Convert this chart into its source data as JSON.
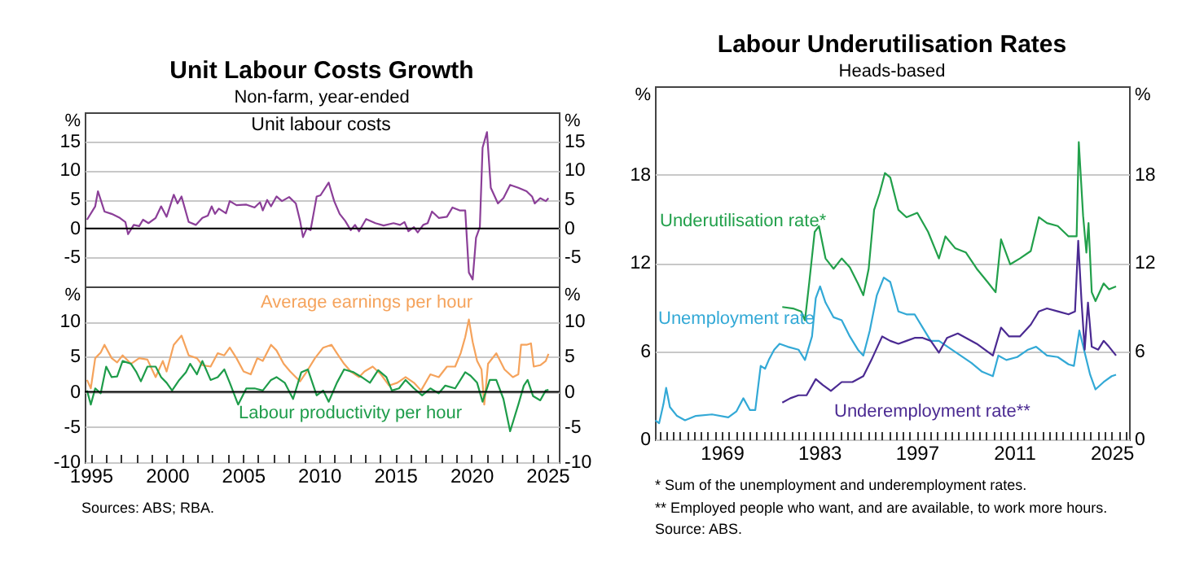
{
  "chart_data": [
    {
      "type": "line",
      "title": "Unit Labour Costs Growth",
      "subtitle": "Non-farm, year-ended",
      "ylabel": "%",
      "y2label": "%",
      "annotations": [
        "Unit labour costs"
      ],
      "xlim": [
        1994.6,
        2025.75
      ],
      "ylim": [
        -10,
        20
      ],
      "yticks": [
        -5,
        0,
        5,
        10,
        15
      ],
      "y2lim": [
        -10,
        20
      ],
      "y2ticks": [
        -5,
        0,
        5,
        10,
        15
      ],
      "grid": "y",
      "tick_labels": "y",
      "ref_lines": [
        {
          "axis": "y",
          "value": 0,
          "color": "#000000"
        }
      ],
      "series": [
        {
          "color": "#8b3f98",
          "x": [
            1994.75,
            1995.29,
            1995.47,
            1995.9,
            1996.37,
            1996.91,
            1997.27,
            1997.45,
            1997.82,
            1998.18,
            1998.43,
            1998.79,
            1999.26,
            1999.62,
            1999.98,
            2000.45,
            2000.7,
            2000.96,
            2001.43,
            2001.9,
            2002.33,
            2002.69,
            2002.94,
            2003.16,
            2003.41,
            2003.88,
            2004.13,
            2004.57,
            2005.22,
            2005.76,
            2006.12,
            2006.3,
            2006.59,
            2006.84,
            2007.2,
            2007.56,
            2008.03,
            2008.47,
            2008.75,
            2008.94,
            2009.19,
            2009.44,
            2009.84,
            2010.09,
            2010.63,
            2010.99,
            2011.35,
            2011.71,
            2012.08,
            2012.36,
            2012.62,
            2013.09,
            2013.7,
            2014.24,
            2014.89,
            2015.32,
            2015.61,
            2015.87,
            2016.23,
            2016.48,
            2016.84,
            2017.13,
            2017.42,
            2017.86,
            2018.4,
            2018.76,
            2019.23,
            2019.6,
            2019.84,
            2020.09,
            2020.31,
            2020.56,
            2020.74,
            2021.03,
            2021.28,
            2021.75,
            2022.11,
            2022.55,
            2023.09,
            2023.63,
            2023.99,
            2024.17,
            2024.53,
            2024.89,
            2025.07
          ],
          "values": [
            1.5,
            3.8,
            6.4,
            2.9,
            2.5,
            1.8,
            1.1,
            -1.0,
            0.6,
            0.4,
            1.5,
            0.9,
            1.8,
            3.8,
            2.0,
            5.8,
            4.3,
            5.5,
            1.1,
            0.6,
            1.8,
            2.2,
            3.8,
            2.5,
            3.4,
            2.6,
            4.7,
            4.0,
            4.1,
            3.6,
            4.5,
            3.1,
            4.9,
            3.8,
            5.5,
            4.7,
            5.4,
            4.3,
            1.3,
            -1.5,
            0,
            -0.3,
            5.5,
            5.7,
            7.9,
            4.7,
            2.5,
            1.3,
            -0.3,
            0.6,
            -0.5,
            1.6,
            0.9,
            0.5,
            0.9,
            0.6,
            1.1,
            -0.5,
            0.2,
            -0.7,
            0.6,
            0.9,
            2.9,
            1.8,
            2.0,
            3.6,
            3.1,
            3.1,
            -7.6,
            -8.8,
            -1.6,
            0.2,
            13.9,
            16.6,
            7.0,
            4.3,
            5.2,
            7.5,
            7.0,
            6.4,
            5.5,
            4.3,
            5.2,
            4.7,
            5.2
          ]
        }
      ]
    },
    {
      "type": "line",
      "ylabel": "%",
      "y2label": "%",
      "annotations": [
        "Sources: ABS; RBA."
      ],
      "xlim": [
        1994.6,
        2025.75
      ],
      "xticks": [
        1995,
        {
          "value": 1996,
          "label": null
        },
        {
          "value": 1997,
          "label": null
        },
        {
          "value": 1998,
          "label": null
        },
        {
          "value": 1999,
          "label": null
        },
        2000,
        {
          "value": 2001,
          "label": null
        },
        {
          "value": 2002,
          "label": null
        },
        {
          "value": 2003,
          "label": null
        },
        {
          "value": 2004,
          "label": null
        },
        2005,
        {
          "value": 2006,
          "label": null
        },
        {
          "value": 2007,
          "label": null
        },
        {
          "value": 2008,
          "label": null
        },
        {
          "value": 2009,
          "label": null
        },
        2010,
        {
          "value": 2011,
          "label": null
        },
        {
          "value": 2012,
          "label": null
        },
        {
          "value": 2013,
          "label": null
        },
        {
          "value": 2014,
          "label": null
        },
        2015,
        {
          "value": 2016,
          "label": null
        },
        {
          "value": 2017,
          "label": null
        },
        {
          "value": 2018,
          "label": null
        },
        {
          "value": 2019,
          "label": null
        },
        2020,
        {
          "value": 2021,
          "label": null
        },
        {
          "value": 2022,
          "label": null
        },
        {
          "value": 2023,
          "label": null
        },
        {
          "value": 2024,
          "label": null
        },
        2025
      ],
      "ylim": [
        -10,
        15
      ],
      "yticks": [
        -10,
        -5,
        0,
        5,
        10
      ],
      "y2lim": [
        -10,
        15
      ],
      "y2ticks": [
        -10,
        -5,
        0,
        5,
        10
      ],
      "grid": "y",
      "ref_lines": [
        {
          "axis": "y",
          "value": 0,
          "color": "#000000"
        }
      ],
      "series": [
        {
          "name": "Average earnings per hour",
          "color": "#f5a35c",
          "x": [
            1994.75,
            1995.0,
            1995.29,
            1995.65,
            1995.9,
            1996.37,
            1996.73,
            1997.09,
            1997.64,
            1998.18,
            1998.72,
            1999.26,
            1999.73,
            1999.98,
            2000.45,
            2000.96,
            2001.43,
            2001.97,
            2002.33,
            2002.87,
            2003.34,
            2003.77,
            2004.13,
            2004.57,
            2005.04,
            2005.51,
            2005.94,
            2006.3,
            2006.84,
            2007.2,
            2007.67,
            2008.1,
            2008.47,
            2008.75,
            2009.19,
            2009.73,
            2010.27,
            2010.81,
            2011.17,
            2011.64,
            2012.08,
            2012.62,
            2012.98,
            2013.52,
            2014.06,
            2014.6,
            2015.14,
            2015.68,
            2016.23,
            2016.7,
            2017.31,
            2017.86,
            2018.4,
            2018.94,
            2019.3,
            2019.6,
            2019.84,
            2020.09,
            2020.38,
            2020.67,
            2020.85,
            2021.1,
            2021.64,
            2022.18,
            2022.73,
            2023.09,
            2023.27,
            2023.63,
            2023.92,
            2024.1,
            2024.53,
            2024.89,
            2025.07
          ],
          "values": [
            1.7,
            0.5,
            4.8,
            5.6,
            6.7,
            4.8,
            4.2,
            5.2,
            4.0,
            4.8,
            4.6,
            2.1,
            4.4,
            2.9,
            6.7,
            8.0,
            5.2,
            4.8,
            3.8,
            3.6,
            5.5,
            5.2,
            6.3,
            4.8,
            2.9,
            2.5,
            4.8,
            4.4,
            6.7,
            5.9,
            4.0,
            2.9,
            2.1,
            1.5,
            2.9,
            4.8,
            6.3,
            6.7,
            5.5,
            4.0,
            2.9,
            2.1,
            2.9,
            3.6,
            2.5,
            0.9,
            1.3,
            2.1,
            1.3,
            0.2,
            2.5,
            2.1,
            3.6,
            3.6,
            5.5,
            7.8,
            10.3,
            7.1,
            4.4,
            3.2,
            -1.8,
            4.0,
            5.5,
            3.2,
            2.1,
            2.5,
            6.7,
            6.7,
            6.9,
            3.6,
            3.8,
            4.4,
            5.4
          ]
        },
        {
          "name": "Labour productivity per hour",
          "color": "#1e9c4a",
          "x": [
            1994.75,
            1995.0,
            1995.29,
            1995.65,
            1996.01,
            1996.37,
            1996.73,
            1997.09,
            1997.64,
            1998.0,
            1998.29,
            1998.72,
            1999.26,
            1999.62,
            1999.98,
            2000.34,
            2000.81,
            2001.25,
            2001.53,
            2001.97,
            2002.33,
            2002.87,
            2003.34,
            2003.77,
            2004.13,
            2004.68,
            2005.22,
            2005.76,
            2006.3,
            2006.84,
            2007.2,
            2007.74,
            2008.29,
            2008.83,
            2009.26,
            2009.84,
            2010.27,
            2010.63,
            2011.17,
            2011.64,
            2012.26,
            2012.8,
            2013.34,
            2013.88,
            2014.42,
            2014.78,
            2015.25,
            2015.68,
            2016.23,
            2016.77,
            2017.31,
            2017.86,
            2018.29,
            2018.94,
            2019.6,
            2019.95,
            2020.38,
            2020.74,
            2021.21,
            2021.64,
            2022.11,
            2022.55,
            2023.09,
            2023.45,
            2023.7,
            2024.06,
            2024.53,
            2024.89,
            2025.07
          ],
          "values": [
            0.2,
            -1.8,
            0.5,
            -0.2,
            3.6,
            2.1,
            2.2,
            4.4,
            4.0,
            2.8,
            1.5,
            3.6,
            3.6,
            2.1,
            1.3,
            0.2,
            1.7,
            2.8,
            4.0,
            2.5,
            4.4,
            1.7,
            2.1,
            3.2,
            1.3,
            -1.8,
            0.5,
            0.5,
            0.2,
            1.7,
            2.1,
            1.3,
            -1.0,
            2.8,
            3.2,
            -0.5,
            0.2,
            -1.4,
            1.3,
            3.2,
            2.8,
            2.1,
            1.3,
            3.1,
            2.1,
            0.2,
            0.5,
            1.7,
            0.5,
            -0.5,
            0.5,
            -0.2,
            0.9,
            0.5,
            2.8,
            2.3,
            1.3,
            -1.4,
            1.7,
            1.7,
            -1.0,
            -5.6,
            -1.8,
            0.9,
            1.7,
            -0.6,
            -1.2,
            0.2,
            0.3
          ]
        }
      ]
    },
    {
      "type": "line",
      "title": "Labour Underutilisation Rates",
      "subtitle": "Heads-based",
      "ylabel": "%",
      "y2label": "%",
      "annotations": [
        "* Sum of the unemployment and underemployment rates.",
        "** Employed people who want, and are available, to work more hours.",
        "Source: ABS."
      ],
      "xlim": [
        1959.4,
        2027.5
      ],
      "xticks": [
        {
          "value": 1960,
          "label": null
        },
        {
          "value": 1961,
          "label": null
        },
        {
          "value": 1962,
          "label": null
        },
        {
          "value": 1963,
          "label": null
        },
        {
          "value": 1964,
          "label": null
        },
        {
          "value": 1965,
          "label": null
        },
        {
          "value": 1966,
          "label": null
        },
        {
          "value": 1967,
          "label": null
        },
        {
          "value": 1968,
          "label": null
        },
        1969,
        {
          "value": 1970,
          "label": null
        },
        {
          "value": 1971,
          "label": null
        },
        {
          "value": 1972,
          "label": null
        },
        {
          "value": 1973,
          "label": null
        },
        {
          "value": 1974,
          "label": null
        },
        {
          "value": 1975,
          "label": null
        },
        {
          "value": 1976,
          "label": null
        },
        {
          "value": 1977,
          "label": null
        },
        {
          "value": 1978,
          "label": null
        },
        {
          "value": 1979,
          "label": null
        },
        {
          "value": 1980,
          "label": null
        },
        {
          "value": 1981,
          "label": null
        },
        {
          "value": 1982,
          "label": null
        },
        1983,
        {
          "value": 1984,
          "label": null
        },
        {
          "value": 1985,
          "label": null
        },
        {
          "value": 1986,
          "label": null
        },
        {
          "value": 1987,
          "label": null
        },
        {
          "value": 1988,
          "label": null
        },
        {
          "value": 1989,
          "label": null
        },
        {
          "value": 1990,
          "label": null
        },
        {
          "value": 1991,
          "label": null
        },
        {
          "value": 1992,
          "label": null
        },
        {
          "value": 1993,
          "label": null
        },
        {
          "value": 1994,
          "label": null
        },
        {
          "value": 1995,
          "label": null
        },
        {
          "value": 1996,
          "label": null
        },
        1997,
        {
          "value": 1998,
          "label": null
        },
        {
          "value": 1999,
          "label": null
        },
        {
          "value": 2000,
          "label": null
        },
        {
          "value": 2001,
          "label": null
        },
        {
          "value": 2002,
          "label": null
        },
        {
          "value": 2003,
          "label": null
        },
        {
          "value": 2004,
          "label": null
        },
        {
          "value": 2005,
          "label": null
        },
        {
          "value": 2006,
          "label": null
        },
        {
          "value": 2007,
          "label": null
        },
        {
          "value": 2008,
          "label": null
        },
        {
          "value": 2009,
          "label": null
        },
        {
          "value": 2010,
          "label": null
        },
        2011,
        {
          "value": 2012,
          "label": null
        },
        {
          "value": 2013,
          "label": null
        },
        {
          "value": 2014,
          "label": null
        },
        {
          "value": 2015,
          "label": null
        },
        {
          "value": 2016,
          "label": null
        },
        {
          "value": 2017,
          "label": null
        },
        {
          "value": 2018,
          "label": null
        },
        {
          "value": 2019,
          "label": null
        },
        {
          "value": 2020,
          "label": null
        },
        {
          "value": 2021,
          "label": null
        },
        {
          "value": 2022,
          "label": null
        },
        {
          "value": 2023,
          "label": null
        },
        {
          "value": 2024,
          "label": null
        },
        2025,
        {
          "value": 2026,
          "label": null
        },
        {
          "value": 2027,
          "label": null
        }
      ],
      "ylim": [
        0,
        24
      ],
      "yticks": [
        0,
        6,
        12,
        18
      ],
      "y2lim": [
        0,
        24
      ],
      "y2ticks": [
        0,
        6,
        12,
        18
      ],
      "grid": "y",
      "series": [
        {
          "name": "Underutilisation rate*",
          "color": "#22a04b",
          "x": [
            1977.69,
            1979.24,
            1980.4,
            1980.95,
            1981.57,
            1982.34,
            1982.96,
            1983.9,
            1985.06,
            1986.22,
            1987.39,
            1988.55,
            1989.33,
            1990.1,
            1990.88,
            1991.65,
            1992.43,
            1993.2,
            1994.37,
            1995.53,
            1997.08,
            1998.64,
            2000.19,
            2001.12,
            2002.51,
            2004.07,
            2005.62,
            2007.17,
            2008.33,
            2009.11,
            2010.43,
            2011.82,
            2013.38,
            2014.54,
            2015.71,
            2017.26,
            2018.81,
            2019.97,
            2020.28,
            2020.9,
            2021.37,
            2021.68,
            2022.14,
            2022.68,
            2023.85,
            2024.62,
            2025.63
          ],
          "values": [
            9.0,
            8.9,
            8.7,
            8.1,
            10.7,
            14.1,
            14.5,
            12.3,
            11.6,
            12.3,
            11.7,
            10.6,
            9.8,
            11.6,
            15.6,
            16.7,
            18.1,
            17.8,
            15.6,
            15.1,
            15.4,
            14.1,
            12.3,
            13.8,
            13.0,
            12.7,
            11.6,
            10.7,
            10.0,
            13.6,
            11.9,
            12.3,
            12.8,
            15.1,
            14.7,
            14.5,
            13.8,
            13.8,
            20.2,
            15.2,
            12.7,
            14.7,
            10.0,
            9.4,
            10.6,
            10.2,
            10.4
          ]
        },
        {
          "name": "Unemployment rate",
          "color": "#33a9d6",
          "x": [
            1959.46,
            1960.0,
            1960.62,
            1961.01,
            1961.55,
            1962.56,
            1963.72,
            1965.28,
            1967.6,
            1969.93,
            1971.09,
            1972.1,
            1973.03,
            1973.81,
            1974.59,
            1975.21,
            1975.75,
            1976.53,
            1977.3,
            1978.46,
            1980.02,
            1980.95,
            1981.96,
            1982.5,
            1983.12,
            1983.9,
            1985.06,
            1986.22,
            1987.39,
            1988.55,
            1989.33,
            1990.26,
            1991.27,
            1992.27,
            1993.2,
            1994.37,
            1995.53,
            1996.7,
            1997.86,
            1999.02,
            2000.19,
            2001.74,
            2003.29,
            2004.84,
            2006.39,
            2007.94,
            2008.72,
            2009.88,
            2011.44,
            2012.99,
            2014.15,
            2015.71,
            2017.26,
            2018.81,
            2019.58,
            2020.36,
            2021.13,
            2021.91,
            2022.68,
            2023.85,
            2025.01,
            2025.63
          ],
          "values": [
            1.3,
            1.1,
            2.4,
            3.5,
            2.2,
            1.6,
            1.3,
            1.6,
            1.7,
            1.5,
            1.9,
            2.8,
            2.0,
            2.0,
            5.0,
            4.8,
            5.4,
            6.1,
            6.5,
            6.3,
            6.1,
            5.4,
            7.0,
            9.6,
            10.4,
            9.3,
            8.3,
            8.1,
            7.0,
            6.1,
            5.7,
            7.4,
            9.8,
            11.0,
            10.7,
            8.7,
            8.5,
            8.5,
            7.6,
            6.7,
            6.7,
            6.2,
            5.7,
            5.2,
            4.6,
            4.3,
            5.7,
            5.4,
            5.6,
            6.1,
            6.3,
            5.7,
            5.6,
            5.1,
            5.0,
            7.4,
            5.9,
            4.4,
            3.4,
            3.9,
            4.3,
            4.4
          ]
        },
        {
          "name": "Underemployment rate**",
          "color": "#4b2a92",
          "x": [
            1977.69,
            1978.85,
            1980.02,
            1981.18,
            1982.5,
            1983.51,
            1984.67,
            1986.22,
            1987.77,
            1989.33,
            1990.49,
            1992.04,
            1993.2,
            1994.37,
            1995.53,
            1996.7,
            1997.86,
            1999.02,
            2000.19,
            2001.35,
            2002.9,
            2004.07,
            2005.62,
            2006.78,
            2007.94,
            2009.11,
            2010.27,
            2011.82,
            2013.38,
            2014.54,
            2015.71,
            2017.26,
            2018.81,
            2019.74,
            2020.2,
            2020.67,
            2021.13,
            2021.6,
            2022.14,
            2023.07,
            2023.85,
            2024.62,
            2025.63
          ],
          "values": [
            2.5,
            2.8,
            3.0,
            3.0,
            4.1,
            3.7,
            3.3,
            3.9,
            3.9,
            4.3,
            5.4,
            7.0,
            6.7,
            6.5,
            6.7,
            6.9,
            6.9,
            6.7,
            5.9,
            6.9,
            7.2,
            6.9,
            6.5,
            6.1,
            5.7,
            7.6,
            7.0,
            7.0,
            7.8,
            8.7,
            8.9,
            8.7,
            8.5,
            8.7,
            13.5,
            9.4,
            6.1,
            9.3,
            6.3,
            6.1,
            6.7,
            6.3,
            5.7
          ]
        }
      ]
    }
  ]
}
